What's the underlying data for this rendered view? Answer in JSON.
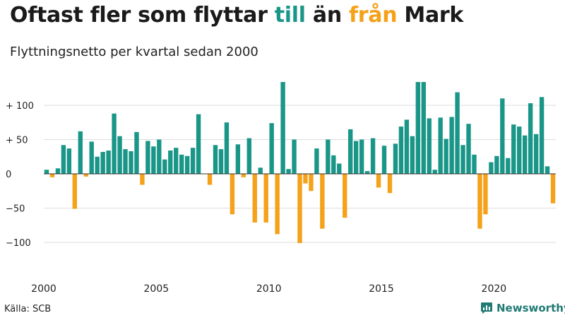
{
  "header": {
    "title_parts": [
      "Oftast fler som flyttar ",
      "till",
      " än ",
      "från",
      " Mark"
    ],
    "subtitle": "Flyttningsnetto per kvartal sedan 2000"
  },
  "footer": {
    "source": "Källa: SCB",
    "brand": "Newsworthy"
  },
  "colors": {
    "positive": "#1a9688",
    "negative": "#f5a11a",
    "grid": "#dddddd",
    "zero_line": "#333333",
    "brand": "#1f7a73"
  },
  "icons": {
    "brand": "bar-chart-speech-icon"
  },
  "chart_data": {
    "type": "bar",
    "title": "Oftast fler som flyttar till än från Mark",
    "subtitle": "Flyttningsnetto per kvartal sedan 2000",
    "xlabel": "",
    "ylabel": "",
    "start_year": 2000,
    "periods_per_year": 4,
    "ylim": [
      -125,
      140
    ],
    "yticks": [
      100,
      50,
      0,
      -50,
      -100
    ],
    "ytick_labels": [
      "+ 100",
      "+  50",
      "0",
      "−50",
      "−100"
    ],
    "xticks": [
      "2000",
      "2005",
      "2010",
      "2015",
      "2020"
    ],
    "grid": true,
    "values": [
      6,
      -5,
      8,
      42,
      37,
      -51,
      62,
      -4,
      47,
      25,
      32,
      34,
      88,
      55,
      36,
      33,
      61,
      -16,
      48,
      40,
      50,
      21,
      34,
      38,
      28,
      26,
      38,
      87,
      0,
      -16,
      42,
      36,
      75,
      -59,
      43,
      -5,
      52,
      -71,
      9,
      -71,
      74,
      -88,
      134,
      7,
      50,
      -101,
      -14,
      -25,
      37,
      -80,
      50,
      27,
      15,
      -64,
      65,
      48,
      50,
      4,
      52,
      -20,
      41,
      -28,
      44,
      69,
      79,
      55,
      134,
      134,
      81,
      6,
      82,
      51,
      83,
      119,
      42,
      73,
      28,
      -80,
      -59,
      17,
      26,
      110,
      23,
      72,
      69,
      56,
      103,
      58,
      112,
      11,
      -43
    ]
  }
}
